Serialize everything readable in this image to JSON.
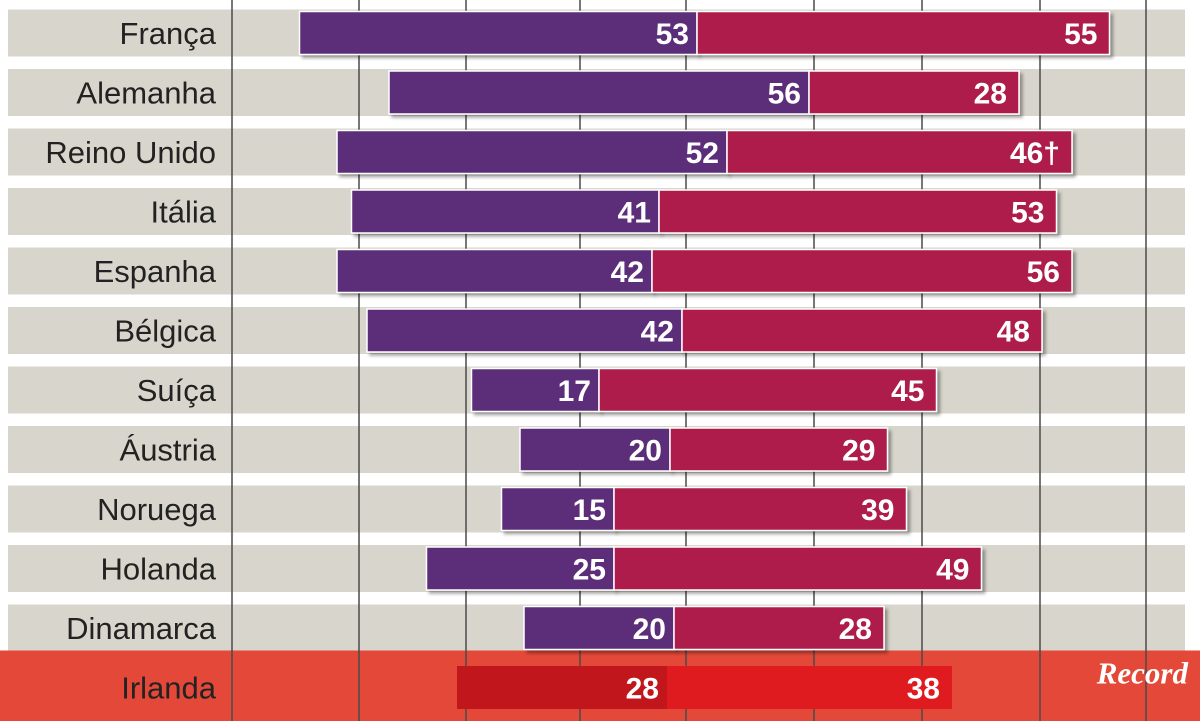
{
  "chart_data": {
    "type": "bar",
    "orientation": "horizontal-diverging-stacked",
    "categories": [
      "França",
      "Alemanha",
      "Reino Unido",
      "Itália",
      "Espanha",
      "Bélgica",
      "Suíça",
      "Áustria",
      "Noruega",
      "Holanda",
      "Dinamarca",
      "Irlanda"
    ],
    "series": [
      {
        "name": "left",
        "color": "#5c2e7a",
        "values": [
          53,
          56,
          52,
          41,
          42,
          42,
          17,
          20,
          15,
          25,
          20,
          28
        ],
        "labels": [
          "53",
          "56",
          "52",
          "41",
          "42",
          "42",
          "17",
          "20",
          "15",
          "25",
          "20",
          "28"
        ]
      },
      {
        "name": "right",
        "color": "#ad1f4c",
        "values": [
          55,
          28,
          46,
          53,
          56,
          48,
          45,
          29,
          39,
          49,
          28,
          38
        ],
        "labels": [
          "55",
          "28",
          "46†",
          "53",
          "56",
          "48",
          "45",
          "29",
          "39",
          "49",
          "28",
          "38"
        ]
      }
    ],
    "highlighted_category": "Irlanda",
    "grid": true,
    "colors": {
      "background_band": "#d8d6cc",
      "gridline": "#4a4a4a",
      "highlight_band": "#e44838",
      "highlight_text": "#c21a22",
      "highlight_left_bar": "#c2161d",
      "highlight_right_bar": "#e01b1f",
      "highlight_value_text": "#ff7560"
    }
  },
  "logo": {
    "text": "Record"
  }
}
